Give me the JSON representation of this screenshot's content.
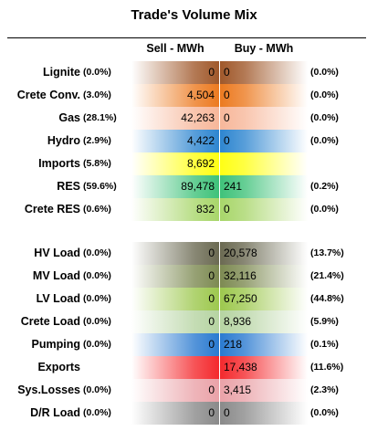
{
  "title": "Trade's Volume Mix",
  "headers": {
    "sell": "Sell - MWh",
    "buy": "Buy - MWh"
  },
  "chart_data": {
    "type": "table",
    "columns": [
      "Sell - MWh",
      "Buy - MWh"
    ],
    "rows": [
      {
        "label": "Lignite",
        "sell": "0",
        "sell_pct": "(0.0%)",
        "buy": "0",
        "buy_pct": "(0.0%)",
        "sell_color": "#a0582a",
        "buy_color": "#a0582a"
      },
      {
        "label": "Crete Conv.",
        "sell": "4,504",
        "sell_pct": "(3.0%)",
        "buy": "0",
        "buy_pct": "(0.0%)",
        "sell_color": "#ec7a20",
        "buy_color": "#ec7a20"
      },
      {
        "label": "Gas",
        "sell": "42,263",
        "sell_pct": "(28.1%)",
        "buy": "0",
        "buy_pct": "(0.0%)",
        "sell_color": "#f7b79a",
        "buy_color": "#f7b79a"
      },
      {
        "label": "Hydro",
        "sell": "4,422",
        "sell_pct": "(2.9%)",
        "buy": "0",
        "buy_pct": "(0.0%)",
        "sell_color": "#2e86d0",
        "buy_color": "#2e86d0"
      },
      {
        "label": "Imports",
        "sell": "8,692",
        "sell_pct": "(5.8%)",
        "buy": "",
        "buy_pct": "",
        "sell_color": "#ffff14",
        "buy_color": "#ffff14"
      },
      {
        "label": "RES",
        "sell": "89,478",
        "sell_pct": "(59.6%)",
        "buy": "241",
        "buy_pct": "(0.2%)",
        "sell_color": "#3fc27a",
        "buy_color": "#3fc27a"
      },
      {
        "label": "Crete RES",
        "sell": "832",
        "sell_pct": "(0.6%)",
        "buy": "0",
        "buy_pct": "(0.0%)",
        "sell_color": "#a8d66a",
        "buy_color": "#a8d66a"
      },
      {
        "label": "HV Load",
        "sell": "0",
        "sell_pct": "(0.0%)",
        "buy": "20,578",
        "buy_pct": "(13.7%)",
        "sell_color": "#6b6a52",
        "buy_color": "#6b6a52"
      },
      {
        "label": "MV Load",
        "sell": "0",
        "sell_pct": "(0.0%)",
        "buy": "32,116",
        "buy_pct": "(21.4%)",
        "sell_color": "#7d8a52",
        "buy_color": "#7d8a52"
      },
      {
        "label": "LV Load",
        "sell": "0",
        "sell_pct": "(0.0%)",
        "buy": "67,250",
        "buy_pct": "(44.8%)",
        "sell_color": "#9dc84e",
        "buy_color": "#9dc84e"
      },
      {
        "label": "Crete Load",
        "sell": "0",
        "sell_pct": "(0.0%)",
        "buy": "8,936",
        "buy_pct": "(5.9%)",
        "sell_color": "#b6d4a2",
        "buy_color": "#b6d4a2"
      },
      {
        "label": "Pumping",
        "sell": "0",
        "sell_pct": "(0.0%)",
        "buy": "218",
        "buy_pct": "(0.1%)",
        "sell_color": "#2a7ad0",
        "buy_color": "#2a7ad0"
      },
      {
        "label": "Exports",
        "sell": "",
        "sell_pct": "",
        "buy": "17,438",
        "buy_pct": "(11.6%)",
        "sell_color": "#f4292d",
        "buy_color": "#f4292d"
      },
      {
        "label": "Sys.Losses",
        "sell": "0",
        "sell_pct": "(0.0%)",
        "buy": "3,415",
        "buy_pct": "(2.3%)",
        "sell_color": "#eaa2a8",
        "buy_color": "#eaa2a8"
      },
      {
        "label": "D/R Load",
        "sell": "0",
        "sell_pct": "(0.0%)",
        "buy": "0",
        "buy_pct": "(0.0%)",
        "sell_color": "#8a8a8a",
        "buy_color": "#8a8a8a"
      }
    ]
  }
}
